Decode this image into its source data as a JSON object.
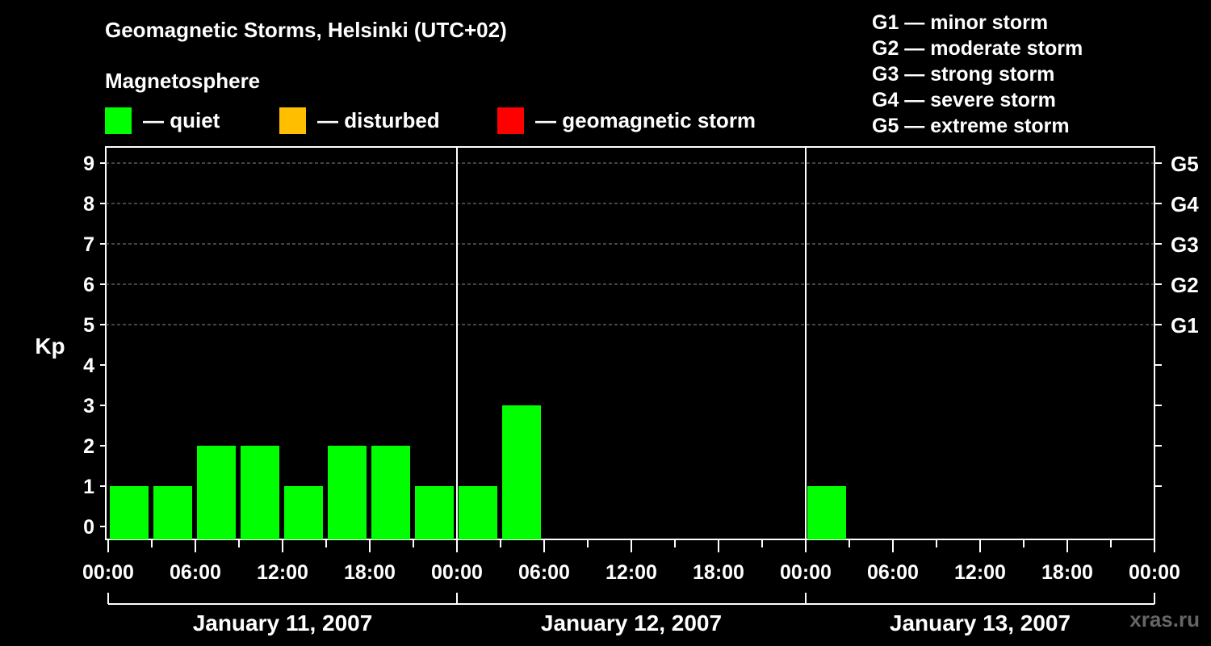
{
  "title": "Geomagnetic Storms, Helsinki (UTC+02)",
  "magnetosphere": {
    "title": "Magnetosphere",
    "legend": [
      {
        "label": "— quiet",
        "color": "#00ff00"
      },
      {
        "label": "— disturbed",
        "color": "#ffbf00"
      },
      {
        "label": "— geomagnetic storm",
        "color": "#ff0000"
      }
    ]
  },
  "storm_scale": [
    "G1 — minor storm",
    "G2 — moderate storm",
    "G3 — strong storm",
    "G4 — severe storm",
    "G5 — extreme storm"
  ],
  "watermark": "xras.ru",
  "chart_data": {
    "type": "bar",
    "ylabel": "Kp",
    "ylim": [
      0,
      9
    ],
    "y_ticks": [
      "0",
      "1",
      "2",
      "3",
      "4",
      "5",
      "6",
      "7",
      "8",
      "9"
    ],
    "right_ticks": [
      {
        "kp": 5,
        "label": "G1"
      },
      {
        "kp": 6,
        "label": "G2"
      },
      {
        "kp": 7,
        "label": "G3"
      },
      {
        "kp": 8,
        "label": "G4"
      },
      {
        "kp": 9,
        "label": "G5"
      }
    ],
    "grid_dashed_at": [
      5,
      6,
      7,
      8,
      9
    ],
    "x_range_hours": [
      0,
      72
    ],
    "x_ticks": [
      "00:00",
      "06:00",
      "12:00",
      "18:00",
      "00:00",
      "06:00",
      "12:00",
      "18:00",
      "00:00",
      "06:00",
      "12:00",
      "18:00",
      "00:00"
    ],
    "days": [
      "January 11, 2007",
      "January 12, 2007",
      "January 13, 2007"
    ],
    "bars": [
      {
        "start_hour": 0,
        "kp": 1,
        "level": "quiet"
      },
      {
        "start_hour": 3,
        "kp": 1,
        "level": "quiet"
      },
      {
        "start_hour": 6,
        "kp": 2,
        "level": "quiet"
      },
      {
        "start_hour": 9,
        "kp": 2,
        "level": "quiet"
      },
      {
        "start_hour": 12,
        "kp": 1,
        "level": "quiet"
      },
      {
        "start_hour": 15,
        "kp": 2,
        "level": "quiet"
      },
      {
        "start_hour": 18,
        "kp": 2,
        "level": "quiet"
      },
      {
        "start_hour": 21,
        "kp": 1,
        "level": "quiet"
      },
      {
        "start_hour": 24,
        "kp": 1,
        "level": "quiet"
      },
      {
        "start_hour": 27,
        "kp": 3,
        "level": "quiet"
      },
      {
        "start_hour": 48,
        "kp": 1,
        "level": "quiet"
      }
    ]
  }
}
